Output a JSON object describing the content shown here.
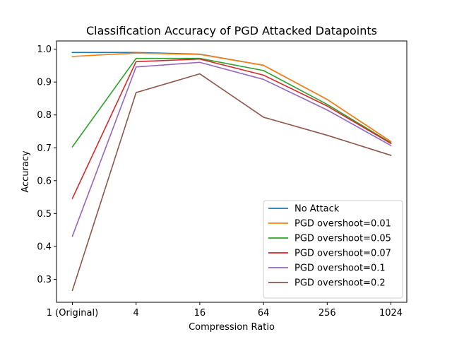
{
  "chart_data": {
    "type": "line",
    "title": "Classification Accuracy of PGD Attacked Datapoints",
    "xlabel": "Compression Ratio",
    "ylabel": "Accuracy",
    "categories": [
      "1 (Original)",
      "4",
      "16",
      "64",
      "256",
      "1024"
    ],
    "ylim": [
      0.23,
      1.025
    ],
    "yticks": [
      0.3,
      0.4,
      0.5,
      0.6,
      0.7,
      0.8,
      0.9,
      1.0
    ],
    "ytick_labels": [
      "0.3",
      "0.4",
      "0.5",
      "0.6",
      "0.7",
      "0.8",
      "0.9",
      "1.0"
    ],
    "grid": false,
    "legend_position": "lower-right",
    "series": [
      {
        "name": "No Attack",
        "color": "#1f77b4",
        "values": [
          0.99,
          0.99,
          0.985,
          0.951,
          0.847,
          0.719
        ]
      },
      {
        "name": "PGD overshoot=0.01",
        "color": "#ff7f0e",
        "values": [
          0.978,
          0.988,
          0.984,
          0.951,
          0.847,
          0.719
        ]
      },
      {
        "name": "PGD overshoot=0.05",
        "color": "#2ca02c",
        "values": [
          0.703,
          0.972,
          0.972,
          0.935,
          0.832,
          0.715
        ]
      },
      {
        "name": "PGD overshoot=0.07",
        "color": "#d62728",
        "values": [
          0.546,
          0.962,
          0.97,
          0.921,
          0.827,
          0.713
        ]
      },
      {
        "name": "PGD overshoot=0.1",
        "color": "#9467bd",
        "values": [
          0.431,
          0.946,
          0.96,
          0.908,
          0.815,
          0.707
        ]
      },
      {
        "name": "PGD overshoot=0.2",
        "color": "#8c564b",
        "values": [
          0.266,
          0.868,
          0.925,
          0.793,
          0.738,
          0.677
        ]
      }
    ]
  }
}
